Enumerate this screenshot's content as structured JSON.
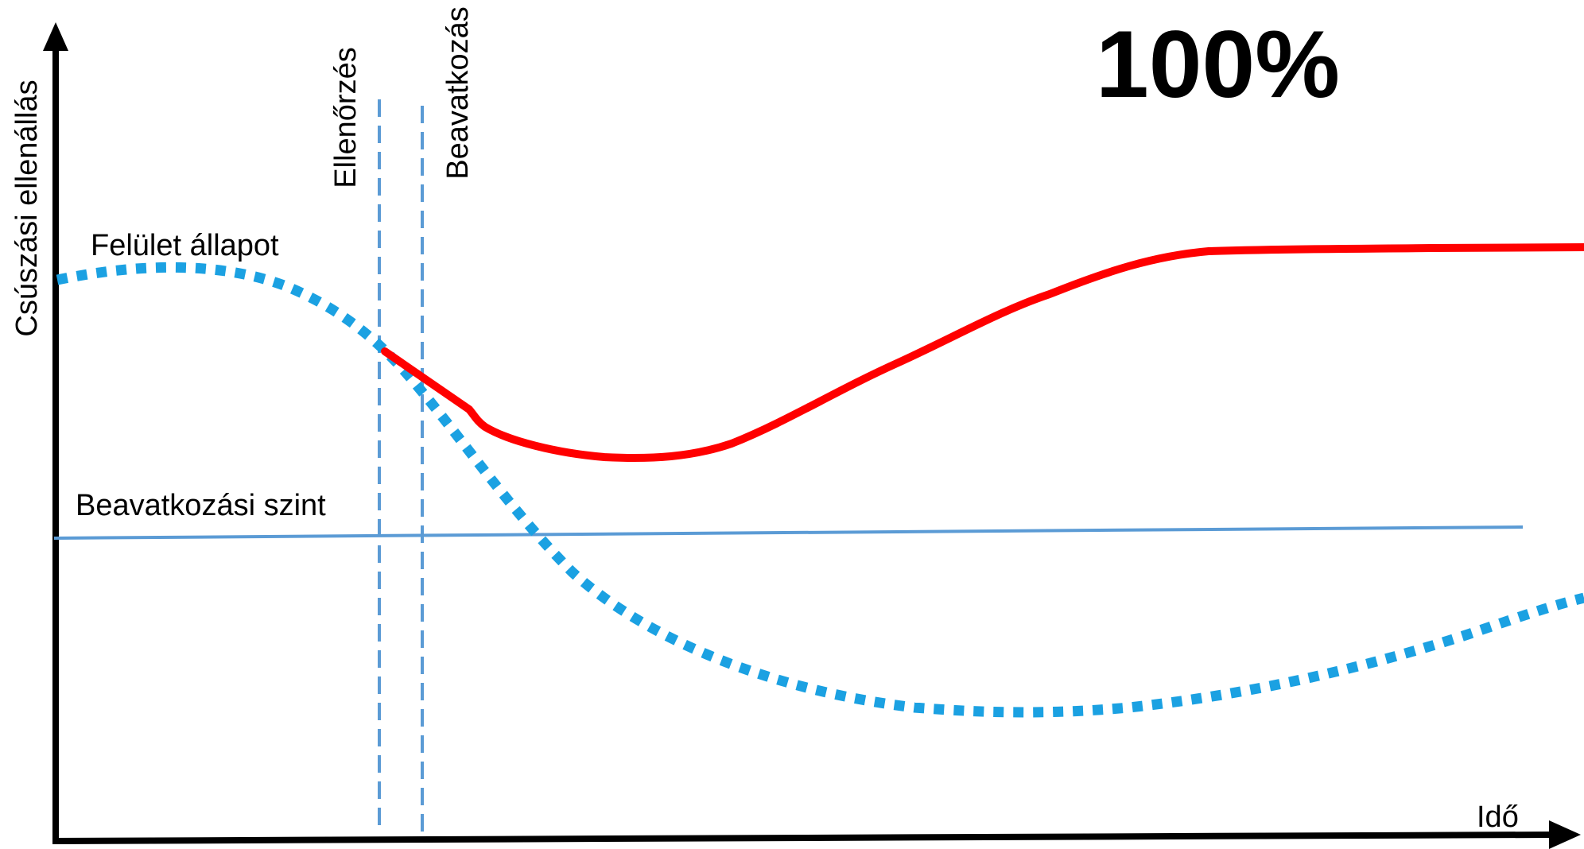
{
  "diagram": {
    "headline": "100%",
    "y_axis_label": "Csúszási ellenállás",
    "x_axis_label": "Idő",
    "surface_label": "Felület állapot",
    "threshold_label": "Beavatkozási szint",
    "inspection_label": "Ellenőrzés",
    "intervention_label": "Beavatkozás"
  },
  "colors": {
    "axis": "#000000",
    "surface_curve": "#1ba1e2",
    "restored_curve": "#ff0000",
    "guide_lines": "#5b9bd5"
  }
}
